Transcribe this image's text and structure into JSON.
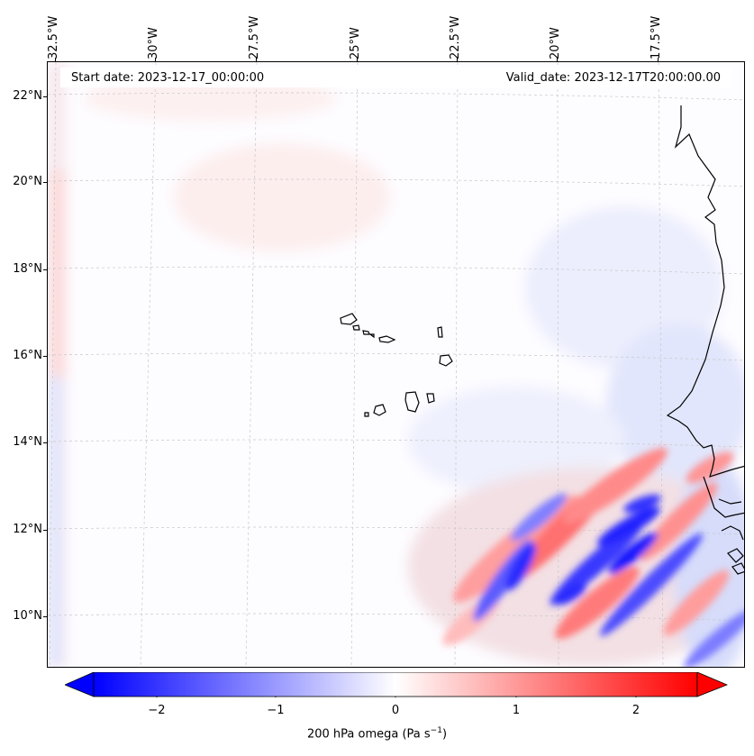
{
  "header": {
    "start_date": "Start date: 2023-12-17_00:00:00",
    "valid_date": "Valid_date: 2023-12-17T20:00:00.00"
  },
  "longitude_labels": [
    "32.5°W",
    "30°W",
    "27.5°W",
    "25°W",
    "22.5°W",
    "20°W",
    "17.5°W"
  ],
  "latitude_labels": [
    "22°N",
    "20°N",
    "18°N",
    "16°N",
    "14°N",
    "12°N",
    "10°N"
  ],
  "colorbar": {
    "ticks": [
      "−2",
      "−1",
      "0",
      "1",
      "2"
    ],
    "label": "200 hPa omega (Pa s",
    "label_sup": "−1",
    "label_end": ")",
    "range": [
      -2.5,
      2.5
    ],
    "colormap": "bwr",
    "extend": "both"
  },
  "colors": {
    "negative": "#0000ff",
    "zero": "#ffffff",
    "positive": "#ff0000",
    "coast": "#000000",
    "grid": "#b0b0b0"
  }
}
